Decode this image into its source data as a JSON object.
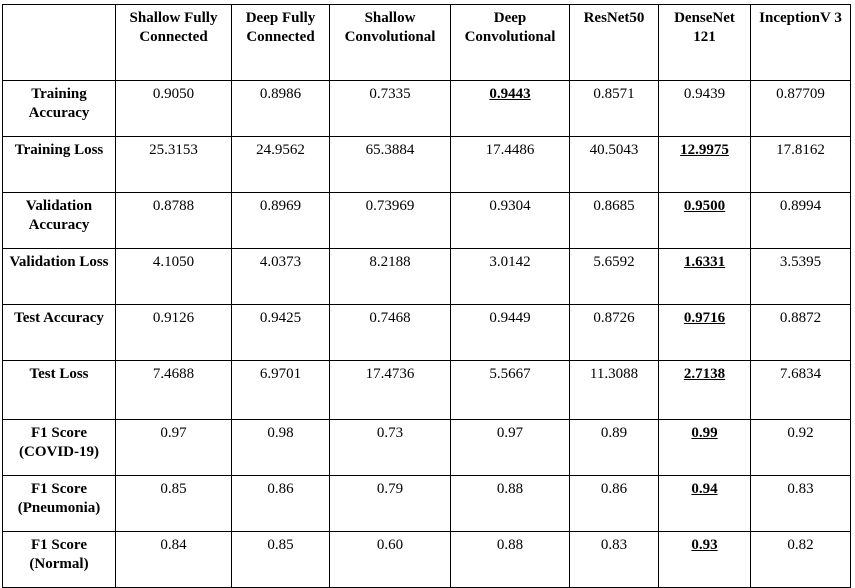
{
  "columns": [
    "",
    "Shallow Fully Connected",
    "Deep Fully Connected",
    "Shallow Convolutional",
    "Deep Convolutional",
    "ResNet50",
    "DenseNet 121",
    "InceptionV 3"
  ],
  "rows": [
    {
      "label": "Training Accuracy",
      "values": [
        "0.9050",
        "0.8986",
        "0.7335",
        "0.9443",
        "0.8571",
        "0.9439",
        "0.87709"
      ],
      "best_index": 3
    },
    {
      "label": "Training Loss",
      "values": [
        "25.3153",
        "24.9562",
        "65.3884",
        "17.4486",
        "40.5043",
        "12.9975",
        "17.8162"
      ],
      "best_index": 5
    },
    {
      "label": "Validation Accuracy",
      "values": [
        "0.8788",
        "0.8969",
        "0.73969",
        "0.9304",
        "0.8685",
        "0.9500",
        "0.8994"
      ],
      "best_index": 5
    },
    {
      "label": "Validation Loss",
      "values": [
        "4.1050",
        "4.0373",
        "8.2188",
        "3.0142",
        "5.6592",
        "1.6331",
        "3.5395"
      ],
      "best_index": 5
    },
    {
      "label": "Test Accuracy",
      "values": [
        "0.9126",
        "0.9425",
        "0.7468",
        "0.9449",
        "0.8726",
        "0.9716",
        "0.8872"
      ],
      "best_index": 5
    },
    {
      "label": "Test Loss",
      "values": [
        "7.4688",
        "6.9701",
        "17.4736",
        "5.5667",
        "11.3088",
        "2.7138",
        "7.6834"
      ],
      "best_index": 5
    },
    {
      "label": "F1 Score (COVID-19)",
      "values": [
        "0.97",
        "0.98",
        "0.73",
        "0.97",
        "0.89",
        "0.99",
        "0.92"
      ],
      "best_index": 5
    },
    {
      "label": "F1 Score (Pneumonia)",
      "values": [
        "0.85",
        "0.86",
        "0.79",
        "0.88",
        "0.86",
        "0.94",
        "0.83"
      ],
      "best_index": 5
    },
    {
      "label": "F1 Score (Normal)",
      "values": [
        "0.84",
        "0.85",
        "0.60",
        "0.88",
        "0.83",
        "0.93",
        "0.82"
      ],
      "best_index": 5
    }
  ]
}
